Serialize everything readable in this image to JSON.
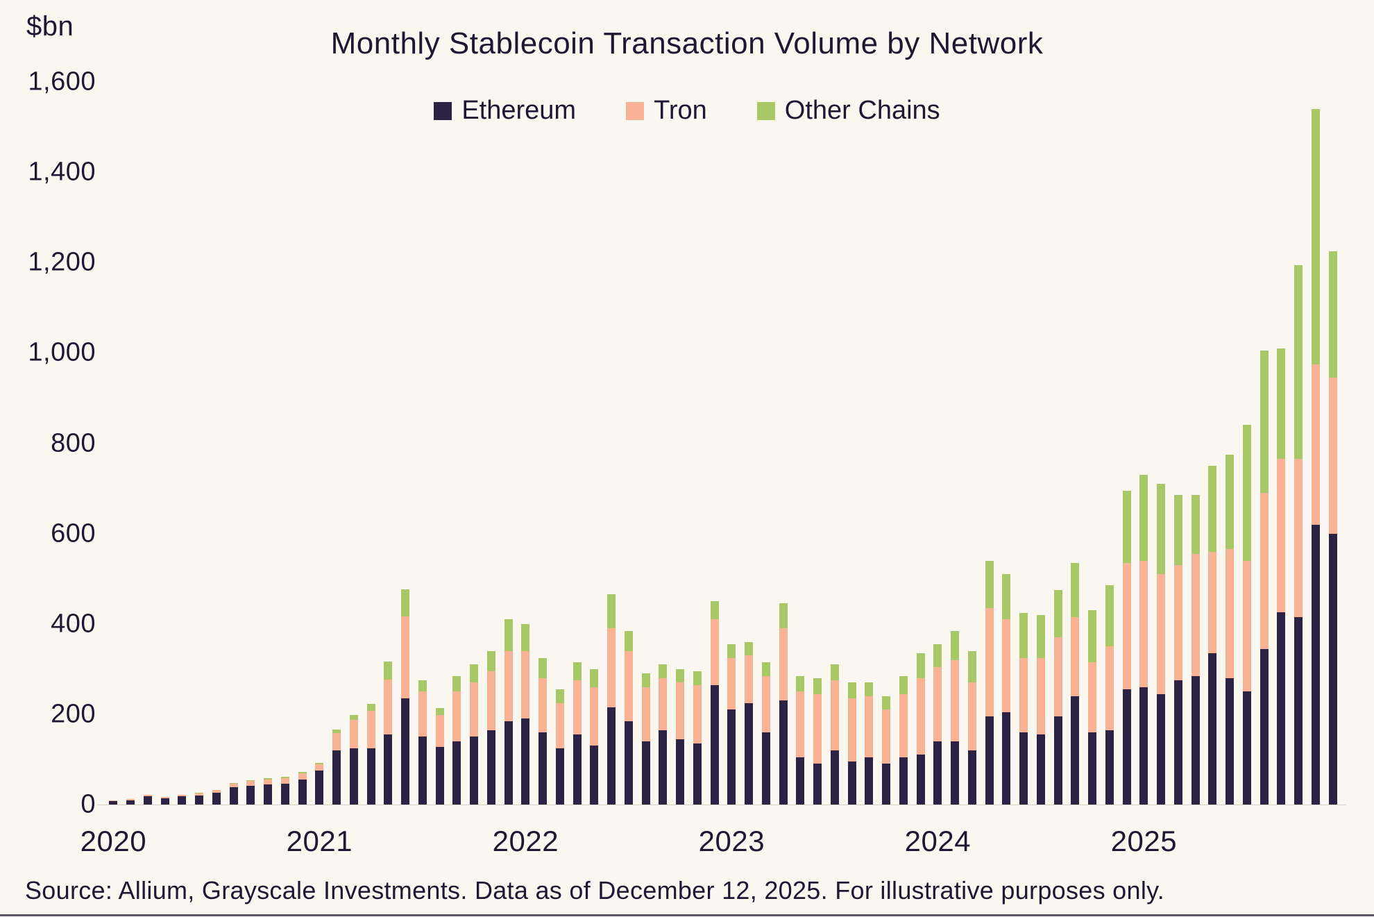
{
  "title": "Monthly Stablecoin Transaction Volume by Network",
  "y_unit": "$bn",
  "legend": [
    {
      "label": "Ethereum",
      "color": "#2b2244"
    },
    {
      "label": "Tron",
      "color": "#f9b394"
    },
    {
      "label": "Other Chains",
      "color": "#a8c766"
    }
  ],
  "source": "Source: Allium, Grayscale Investments. Data as of December 12, 2025. For illustrative purposes only.",
  "chart_data": {
    "type": "bar",
    "stacked": true,
    "title": "Monthly Stablecoin Transaction Volume by Network",
    "xlabel": "",
    "ylabel": "$bn",
    "ylim": [
      0,
      1600
    ],
    "grid": false,
    "legend_position": "top-center",
    "yticks": [
      0,
      200,
      400,
      600,
      800,
      1000,
      1200,
      1400,
      1600
    ],
    "ytick_labels": [
      "0",
      "200",
      "400",
      "600",
      "800",
      "1,000",
      "1,200",
      "1,400",
      "1,600"
    ],
    "x_year_labels": [
      "2020",
      "2021",
      "2022",
      "2023",
      "2024",
      "2025"
    ],
    "year_start_indices": [
      0,
      12,
      24,
      36,
      48,
      60
    ],
    "categories": [
      "Jan 2020",
      "Feb 2020",
      "Mar 2020",
      "Apr 2020",
      "May 2020",
      "Jun 2020",
      "Jul 2020",
      "Aug 2020",
      "Sep 2020",
      "Oct 2020",
      "Nov 2020",
      "Dec 2020",
      "Jan 2021",
      "Feb 2021",
      "Mar 2021",
      "Apr 2021",
      "May 2021",
      "Jun 2021",
      "Jul 2021",
      "Aug 2021",
      "Sep 2021",
      "Oct 2021",
      "Nov 2021",
      "Dec 2021",
      "Jan 2022",
      "Feb 2022",
      "Mar 2022",
      "Apr 2022",
      "May 2022",
      "Jun 2022",
      "Jul 2022",
      "Aug 2022",
      "Sep 2022",
      "Oct 2022",
      "Nov 2022",
      "Dec 2022",
      "Jan 2023",
      "Feb 2023",
      "Mar 2023",
      "Apr 2023",
      "May 2023",
      "Jun 2023",
      "Jul 2023",
      "Aug 2023",
      "Sep 2023",
      "Oct 2023",
      "Nov 2023",
      "Dec 2023",
      "Jan 2024",
      "Feb 2024",
      "Mar 2024",
      "Apr 2024",
      "May 2024",
      "Jun 2024",
      "Jul 2024",
      "Aug 2024",
      "Sep 2024",
      "Oct 2024",
      "Nov 2024",
      "Dec 2024",
      "Jan 2025",
      "Feb 2025",
      "Mar 2025",
      "Apr 2025",
      "May 2025",
      "Jun 2025",
      "Jul 2025",
      "Aug 2025",
      "Sep 2025",
      "Oct 2025",
      "Nov 2025",
      "Dec 2025"
    ],
    "series": [
      {
        "name": "Ethereum",
        "color": "#2b2244",
        "values": [
          8,
          10,
          18,
          14,
          18,
          20,
          26,
          38,
          42,
          44,
          46,
          55,
          75,
          120,
          125,
          125,
          155,
          235,
          150,
          128,
          140,
          150,
          165,
          185,
          190,
          160,
          125,
          155,
          130,
          215,
          185,
          140,
          165,
          145,
          135,
          265,
          210,
          225,
          160,
          230,
          105,
          90,
          120,
          95,
          105,
          90,
          105,
          110,
          140,
          140,
          120,
          195,
          205,
          160,
          155,
          195,
          240,
          160,
          165,
          255,
          260,
          245,
          275,
          285,
          335,
          280,
          250,
          345,
          425,
          415,
          620,
          600
        ]
      },
      {
        "name": "Tron",
        "color": "#f9b394",
        "values": [
          1,
          2,
          3,
          3,
          4,
          5,
          6,
          8,
          10,
          12,
          12,
          14,
          14,
          38,
          62,
          82,
          122,
          182,
          100,
          70,
          110,
          120,
          130,
          155,
          150,
          120,
          100,
          120,
          130,
          175,
          155,
          120,
          115,
          125,
          130,
          145,
          115,
          105,
          125,
          160,
          145,
          155,
          155,
          140,
          135,
          120,
          140,
          170,
          165,
          180,
          150,
          240,
          205,
          165,
          170,
          175,
          175,
          155,
          185,
          280,
          280,
          265,
          255,
          270,
          225,
          285,
          290,
          345,
          340,
          350,
          355,
          345
        ]
      },
      {
        "name": "Other Chains",
        "color": "#a8c766",
        "values": [
          0,
          0,
          0,
          0,
          0,
          1,
          1,
          2,
          2,
          3,
          3,
          4,
          3,
          8,
          12,
          16,
          40,
          60,
          25,
          15,
          35,
          40,
          45,
          70,
          60,
          45,
          30,
          40,
          40,
          75,
          45,
          30,
          30,
          30,
          30,
          40,
          30,
          30,
          30,
          55,
          35,
          35,
          35,
          35,
          30,
          30,
          40,
          55,
          50,
          65,
          70,
          105,
          100,
          100,
          95,
          105,
          120,
          115,
          135,
          160,
          190,
          200,
          155,
          130,
          190,
          210,
          300,
          315,
          245,
          430,
          565,
          280
        ]
      }
    ]
  }
}
